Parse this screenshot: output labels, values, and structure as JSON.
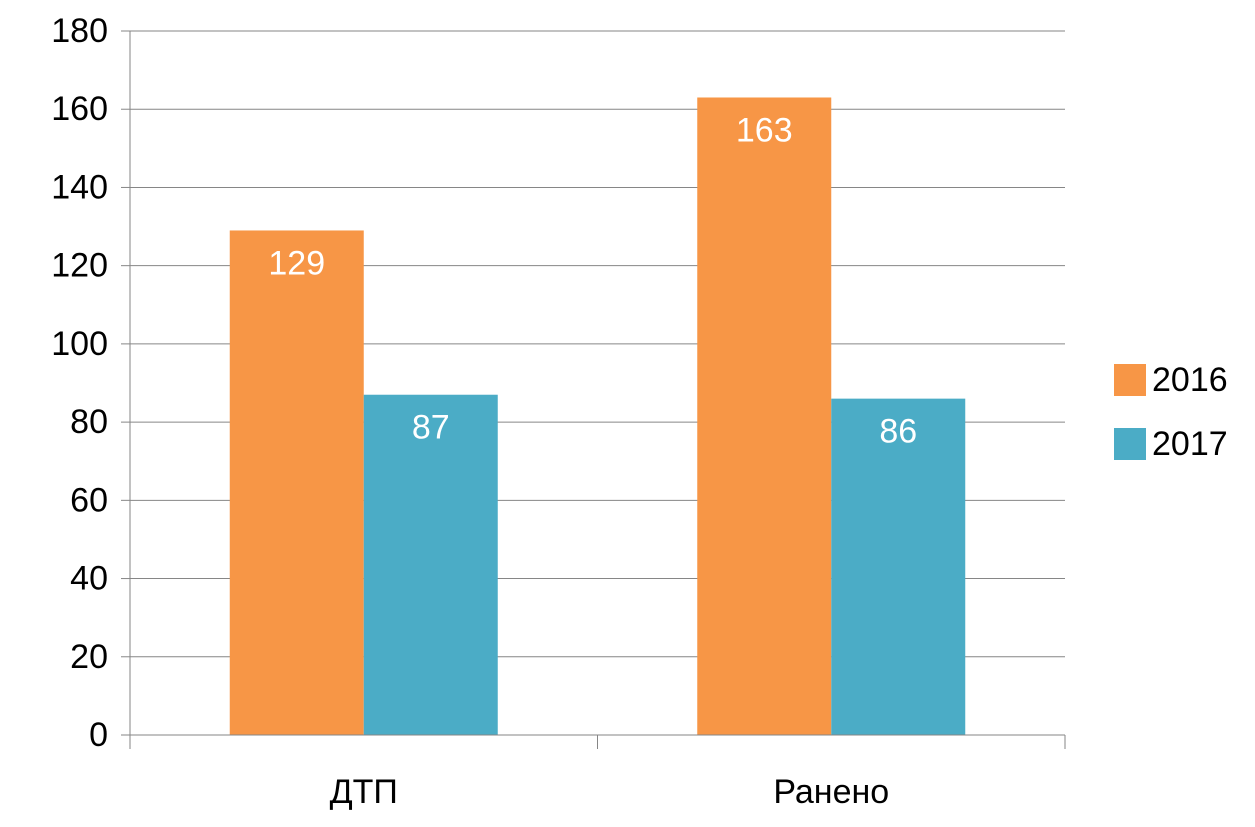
{
  "chart_data": {
    "type": "bar",
    "categories": [
      "ДТП",
      "Ранено"
    ],
    "series": [
      {
        "name": "2016",
        "values": [
          129,
          163
        ],
        "color": "#F79646"
      },
      {
        "name": "2017",
        "values": [
          87,
          86
        ],
        "color": "#4BACC6"
      }
    ],
    "ylim": [
      0,
      180
    ],
    "yticks": [
      "0",
      "20",
      "40",
      "60",
      "80",
      "100",
      "120",
      "140",
      "160",
      "180"
    ],
    "grid": true,
    "legend_position": "right",
    "title": "",
    "xlabel": "",
    "ylabel": ""
  }
}
